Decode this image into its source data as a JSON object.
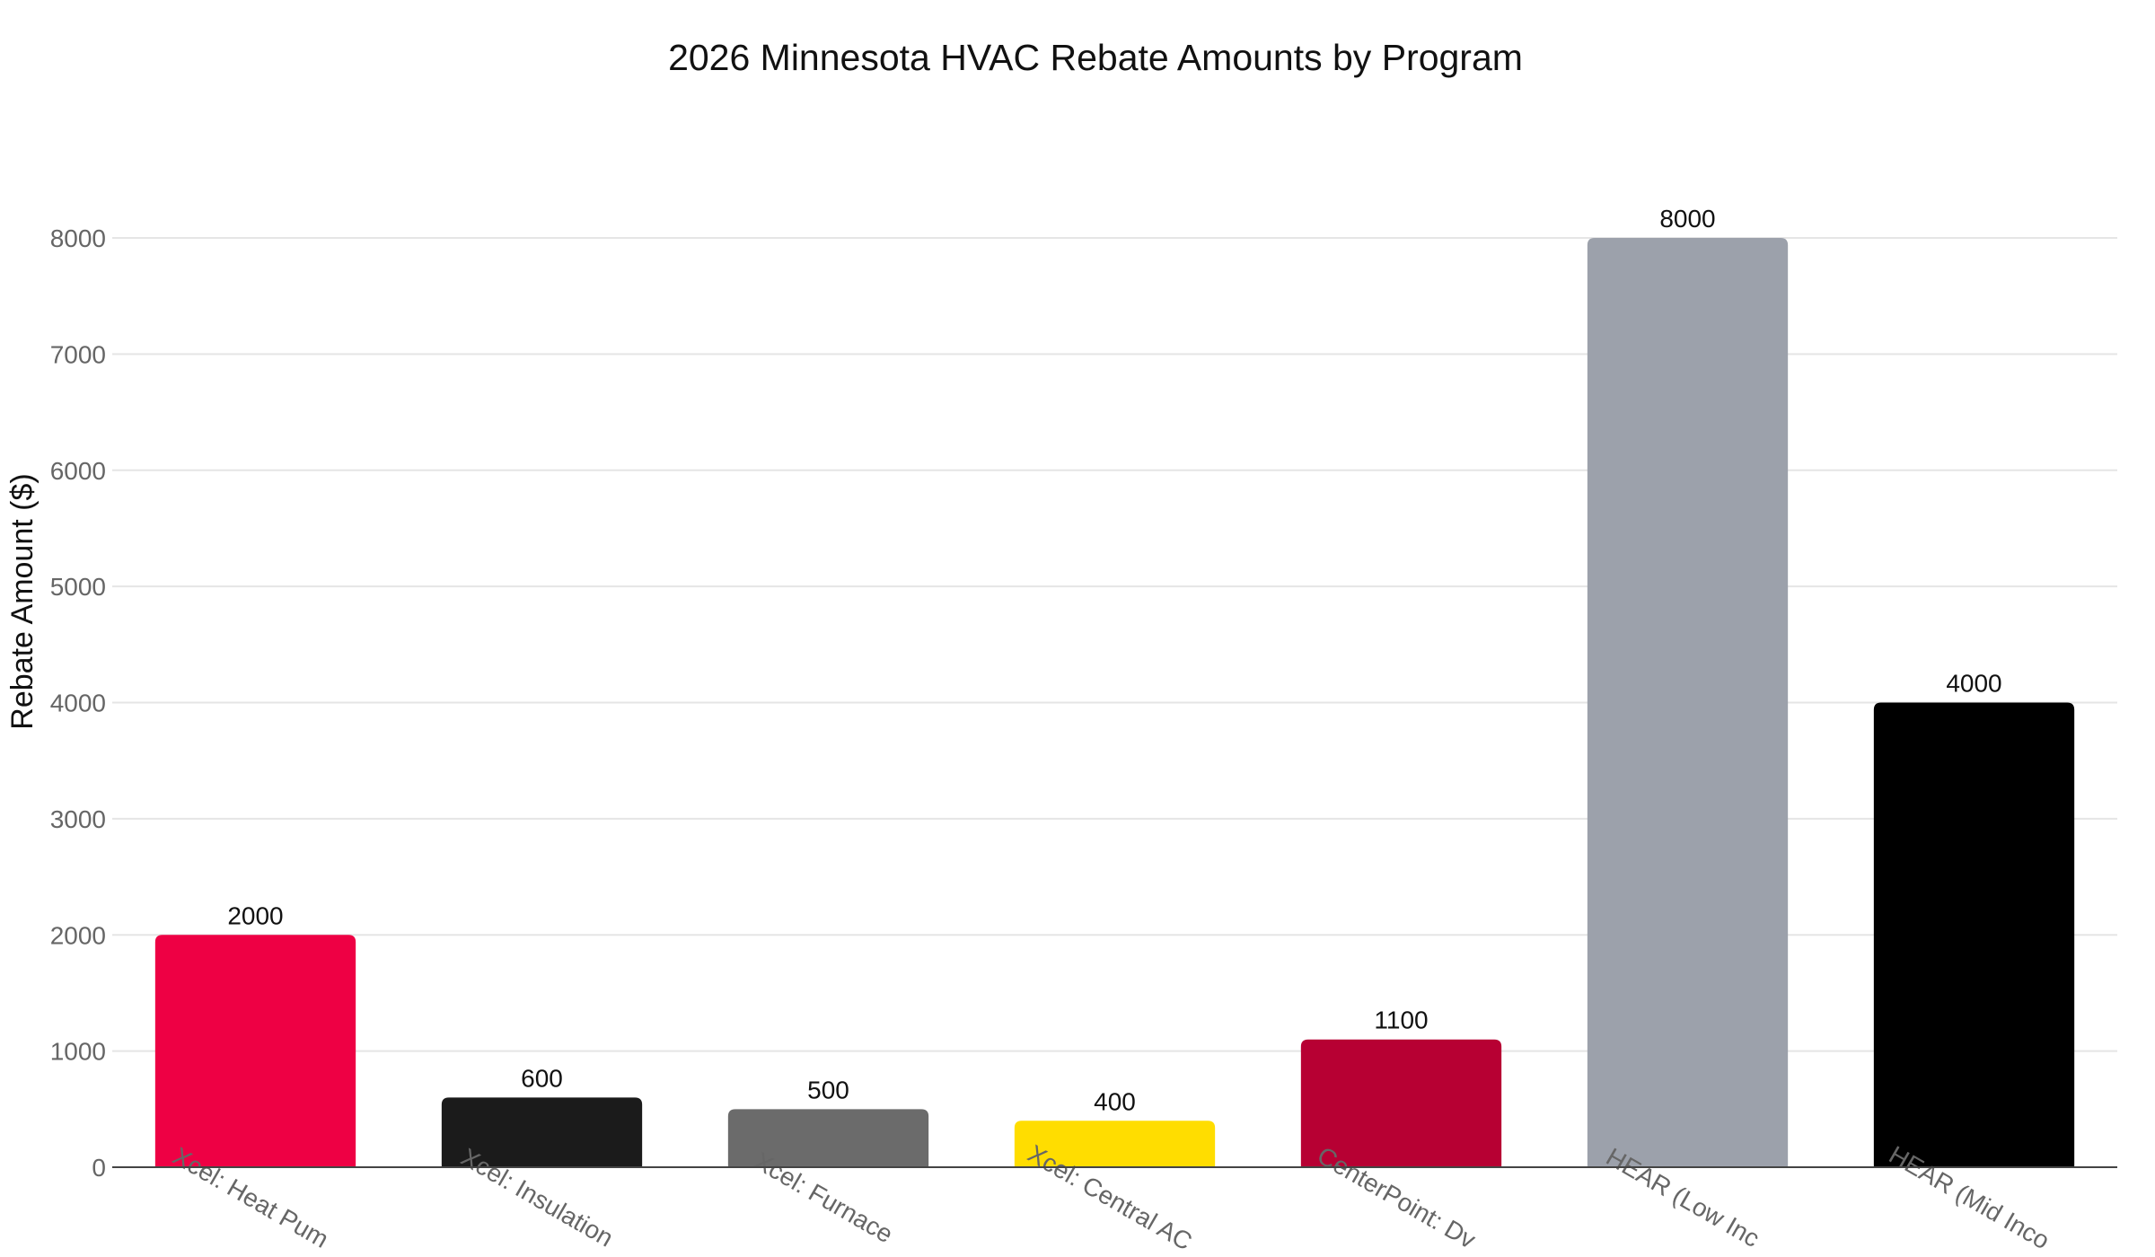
{
  "chart_data": {
    "type": "bar",
    "title": "2026 Minnesota HVAC Rebate Amounts by Program",
    "ylabel": "Rebate Amount ($)",
    "categories": [
      "Xcel: Heat Pum",
      "Xcel: Insulation",
      "Xcel: Furnace",
      "Xcel: Central AC",
      "CenterPoint: Dv",
      "HEAR (Low Inc",
      "HEAR (Mid Inco"
    ],
    "values": [
      2000,
      600,
      500,
      400,
      1100,
      8000,
      4000
    ],
    "colors": [
      "#ee0044",
      "#1b1b1b",
      "#6b6b6b",
      "#ffdd00",
      "#b70033",
      "#9ca1ab",
      "#000000"
    ],
    "ylim": [
      0,
      8000
    ],
    "yticks": [
      0,
      1000,
      2000,
      3000,
      4000,
      5000,
      6000,
      7000,
      8000
    ],
    "grid": true,
    "legend": "none"
  }
}
